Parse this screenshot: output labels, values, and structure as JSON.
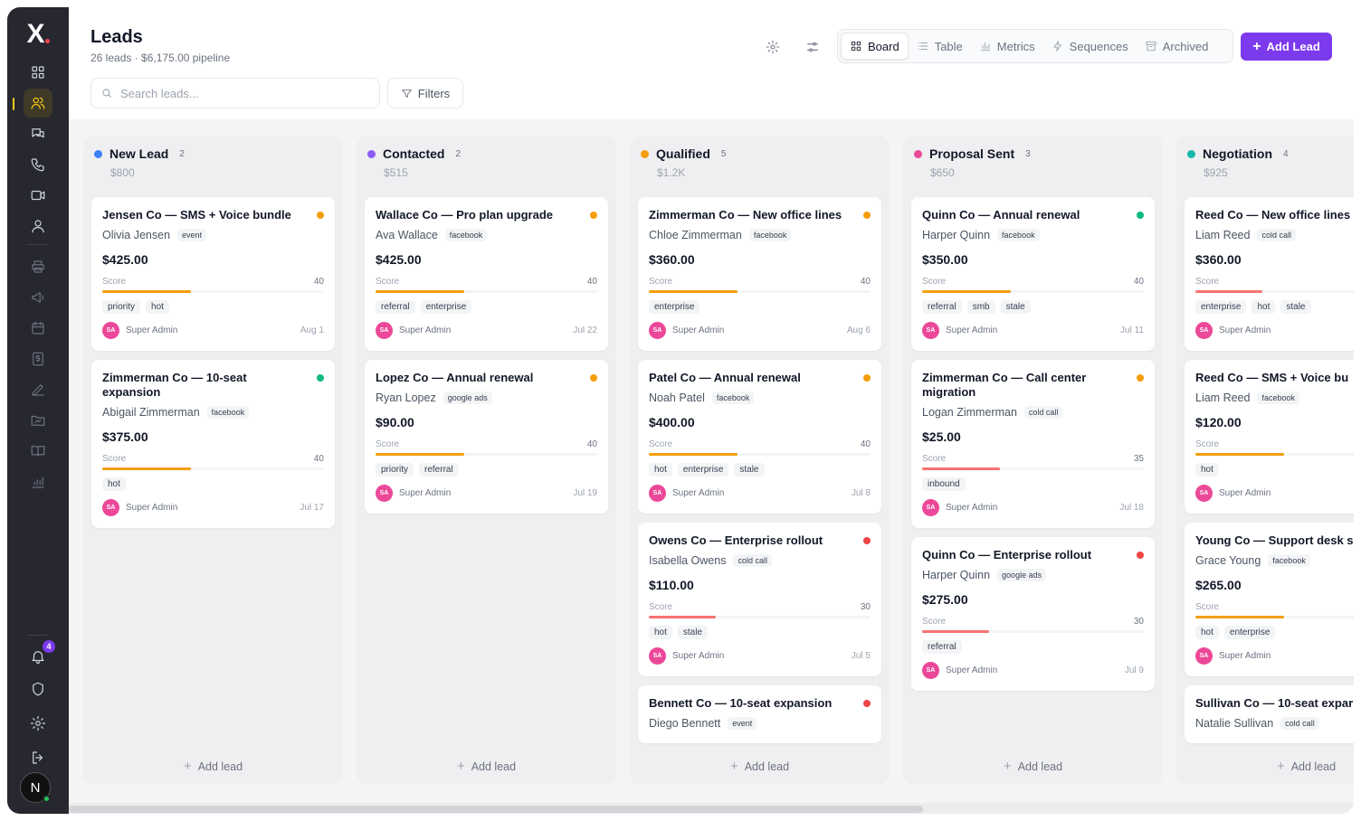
{
  "app": {
    "logo": "X"
  },
  "rail": {
    "notifications_count": "4",
    "user_initial": "N"
  },
  "page": {
    "title": "Leads",
    "subtitle": "26 leads · $6,175.00 pipeline"
  },
  "views": [
    {
      "label": "Board",
      "icon": "board-icon",
      "active": true
    },
    {
      "label": "Table",
      "icon": "list-icon"
    },
    {
      "label": "Metrics",
      "icon": "chart-icon"
    },
    {
      "label": "Sequences",
      "icon": "bolt-icon"
    },
    {
      "label": "Archived",
      "icon": "archive-icon"
    }
  ],
  "actions": {
    "add_lead": "Add Lead",
    "filters": "Filters",
    "add_lead_col": "Add lead"
  },
  "search": {
    "placeholder": "Search leads...",
    "value": ""
  },
  "colors": {
    "accent": "#7c3aed",
    "active_nav": "#facc15",
    "rail": "#27272f"
  },
  "columns": [
    {
      "name": "New Lead",
      "count": "2",
      "value": "$800",
      "color": "#3b82f6",
      "cards": [
        {
          "title": "Jensen Co — SMS + Voice bundle",
          "contact": "Olivia Jensen",
          "source": "event",
          "amount": "$425.00",
          "score_label": "Score",
          "score": "40",
          "tags": [
            "priority",
            "hot"
          ],
          "owner_initials": "SA",
          "owner": "Super Admin",
          "date": "Aug 1",
          "priority_color": "#f59e0b"
        },
        {
          "title": "Zimmerman Co — 10-seat expansion",
          "contact": "Abigail Zimmerman",
          "source": "facebook",
          "amount": "$375.00",
          "score_label": "Score",
          "score": "40",
          "tags": [
            "hot"
          ],
          "owner_initials": "SA",
          "owner": "Super Admin",
          "date": "Jul 17",
          "priority_color": "#10b981"
        }
      ]
    },
    {
      "name": "Contacted",
      "count": "2",
      "value": "$515",
      "color": "#8b5cf6",
      "cards": [
        {
          "title": "Wallace Co — Pro plan upgrade",
          "contact": "Ava Wallace",
          "source": "facebook",
          "amount": "$425.00",
          "score_label": "Score",
          "score": "40",
          "tags": [
            "referral",
            "enterprise"
          ],
          "owner_initials": "SA",
          "owner": "Super Admin",
          "date": "Jul 22",
          "priority_color": "#f59e0b"
        },
        {
          "title": "Lopez Co — Annual renewal",
          "contact": "Ryan Lopez",
          "source": "google ads",
          "amount": "$90.00",
          "score_label": "Score",
          "score": "40",
          "tags": [
            "priority",
            "referral"
          ],
          "owner_initials": "SA",
          "owner": "Super Admin",
          "date": "Jul 19",
          "priority_color": "#f59e0b"
        }
      ]
    },
    {
      "name": "Qualified",
      "count": "5",
      "value": "$1.2K",
      "color": "#f59e0b",
      "cards": [
        {
          "title": "Zimmerman Co — New office lines",
          "contact": "Chloe Zimmerman",
          "source": "facebook",
          "amount": "$360.00",
          "score_label": "Score",
          "score": "40",
          "tags": [
            "enterprise"
          ],
          "owner_initials": "SA",
          "owner": "Super Admin",
          "date": "Aug 6",
          "priority_color": "#f59e0b"
        },
        {
          "title": "Patel Co — Annual renewal",
          "contact": "Noah Patel",
          "source": "facebook",
          "amount": "$400.00",
          "score_label": "Score",
          "score": "40",
          "tags": [
            "hot",
            "enterprise",
            "stale"
          ],
          "owner_initials": "SA",
          "owner": "Super Admin",
          "date": "Jul 8",
          "priority_color": "#f59e0b"
        },
        {
          "title": "Owens Co — Enterprise rollout",
          "contact": "Isabella Owens",
          "source": "cold call",
          "amount": "$110.00",
          "score_label": "Score",
          "score": "30",
          "tags": [
            "hot",
            "stale"
          ],
          "owner_initials": "SA",
          "owner": "Super Admin",
          "date": "Jul 5",
          "priority_color": "#ef4444"
        },
        {
          "title": "Bennett Co — 10-seat expansion",
          "contact": "Diego Bennett",
          "source": "event",
          "priority_color": "#ef4444"
        }
      ]
    },
    {
      "name": "Proposal Sent",
      "count": "3",
      "value": "$650",
      "color": "#ec4899",
      "cards": [
        {
          "title": "Quinn Co — Annual renewal",
          "contact": "Harper Quinn",
          "source": "facebook",
          "amount": "$350.00",
          "score_label": "Score",
          "score": "40",
          "tags": [
            "referral",
            "smb",
            "stale"
          ],
          "owner_initials": "SA",
          "owner": "Super Admin",
          "date": "Jul 11",
          "priority_color": "#10b981"
        },
        {
          "title": "Zimmerman Co — Call center migration",
          "contact": "Logan Zimmerman",
          "source": "cold call",
          "amount": "$25.00",
          "score_label": "Score",
          "score": "35",
          "tags": [
            "inbound"
          ],
          "owner_initials": "SA",
          "owner": "Super Admin",
          "date": "Jul 18",
          "priority_color": "#f59e0b"
        },
        {
          "title": "Quinn Co — Enterprise rollout",
          "contact": "Harper Quinn",
          "source": "google ads",
          "amount": "$275.00",
          "score_label": "Score",
          "score": "30",
          "tags": [
            "referral"
          ],
          "owner_initials": "SA",
          "owner": "Super Admin",
          "date": "Jul 9",
          "priority_color": "#ef4444"
        }
      ]
    },
    {
      "name": "Negotiation",
      "count": "4",
      "value": "$925",
      "color": "#14b8a6",
      "cards": [
        {
          "title": "Reed Co — New office lines",
          "contact": "Liam Reed",
          "source": "cold call",
          "amount": "$360.00",
          "score_label": "Score",
          "score": "",
          "tags": [
            "enterprise",
            "hot",
            "stale"
          ],
          "owner_initials": "SA",
          "owner": "Super Admin",
          "date": "",
          "priority_color": ""
        },
        {
          "title": "Reed Co — SMS + Voice bu",
          "contact": "Liam Reed",
          "source": "facebook",
          "amount": "$120.00",
          "score_label": "Score",
          "score": "",
          "tags": [
            "hot"
          ],
          "owner_initials": "SA",
          "owner": "Super Admin",
          "date": "",
          "priority_color": ""
        },
        {
          "title": "Young Co — Support desk s",
          "contact": "Grace Young",
          "source": "facebook",
          "amount": "$265.00",
          "score_label": "Score",
          "score": "",
          "tags": [
            "hot",
            "enterprise"
          ],
          "owner_initials": "SA",
          "owner": "Super Admin",
          "date": "",
          "priority_color": ""
        },
        {
          "title": "Sullivan Co — 10-seat expar",
          "contact": "Natalie Sullivan",
          "source": "cold call",
          "priority_color": ""
        }
      ]
    }
  ]
}
